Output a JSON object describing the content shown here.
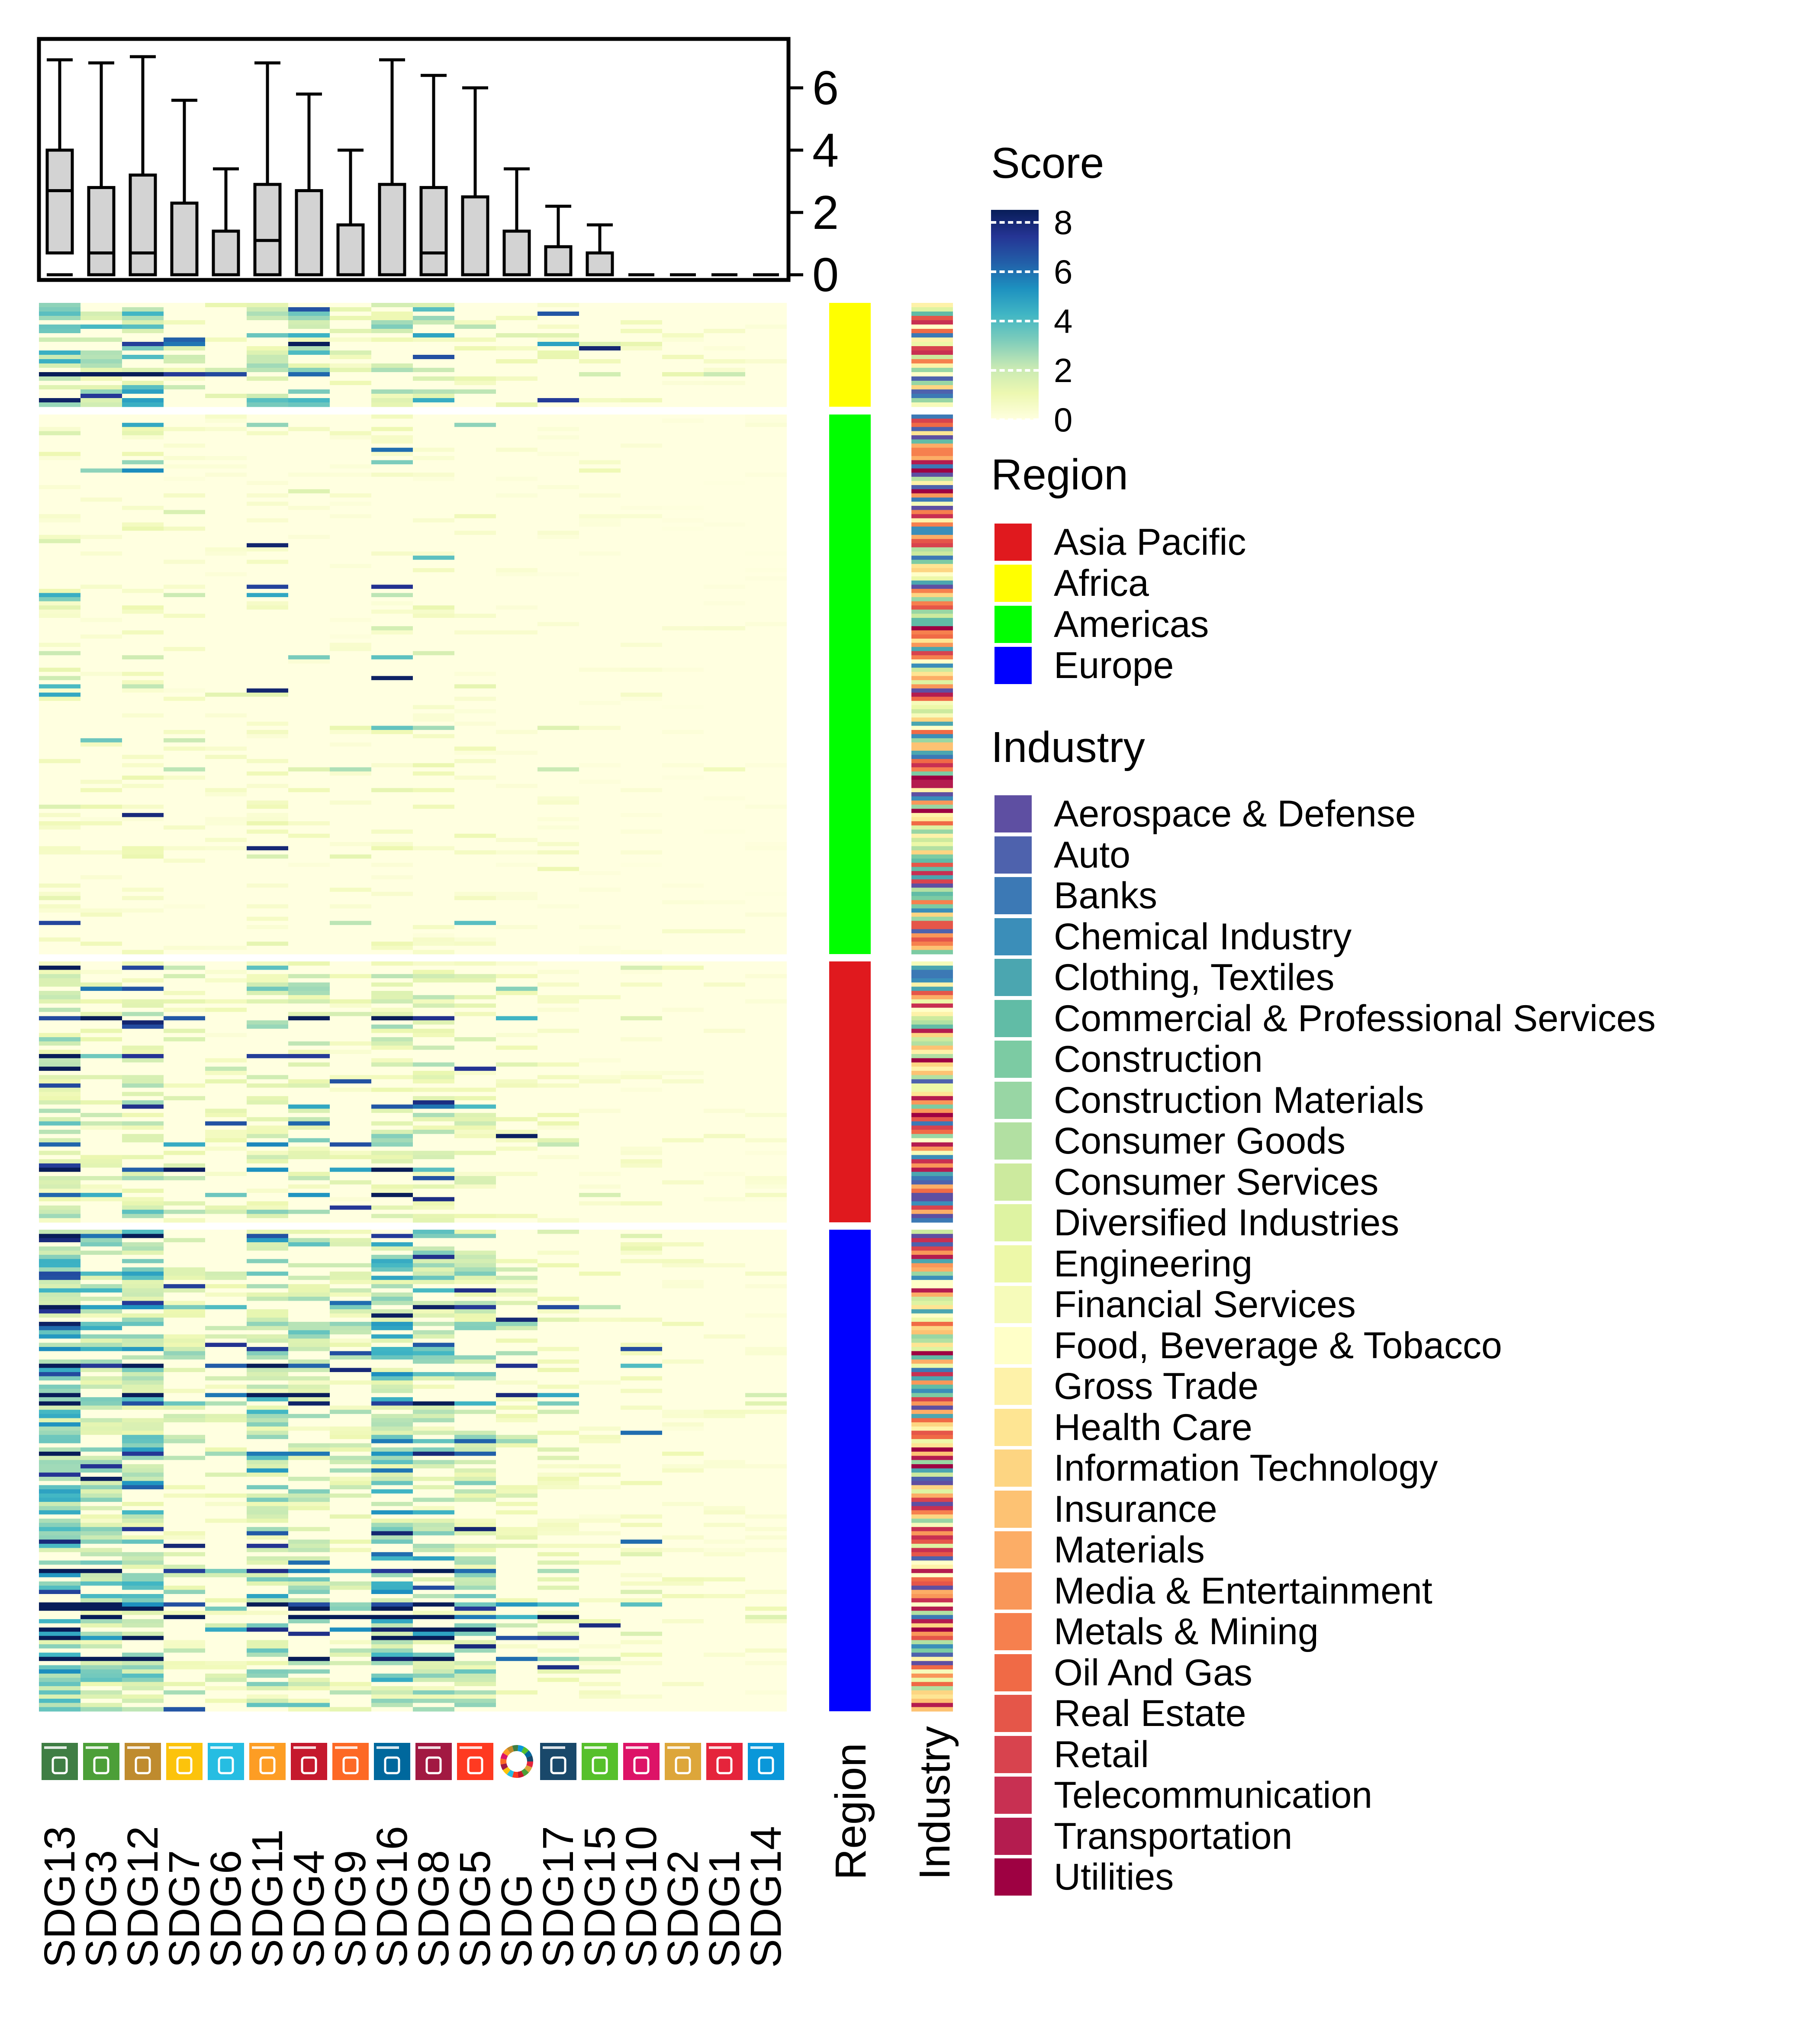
{
  "chart_data": {
    "type": "heatmap",
    "columns": [
      "SDG13",
      "SDG3",
      "SDG12",
      "SDG7",
      "SDG6",
      "SDG11",
      "SDG4",
      "SDG9",
      "SDG16",
      "SDG8",
      "SDG5",
      "SDG",
      "SDG17",
      "SDG15",
      "SDG10",
      "SDG2",
      "SDG1",
      "SDG14"
    ],
    "sdg_icon_colors": [
      "#3F7E44",
      "#4C9F38",
      "#BF8B2E",
      "#FCC30B",
      "#26BDE2",
      "#FD9D24",
      "#C5192D",
      "#FD6925",
      "#00689D",
      "#A21942",
      "#FF3A21",
      "#FFFFFF",
      "#19486A",
      "#56C02B",
      "#DD1367",
      "#DDA63A",
      "#E5243B",
      "#0A97D9"
    ],
    "boxplot": {
      "axis_ticks": [
        "0",
        "2",
        "4",
        "6"
      ],
      "ylim": [
        0,
        7.3
      ],
      "stats": [
        {
          "min": 0,
          "q1": 0.7,
          "median": 2.7,
          "q3": 4.0,
          "max": 6.9
        },
        {
          "min": 0,
          "q1": 0,
          "median": 0.7,
          "q3": 2.8,
          "max": 6.8
        },
        {
          "min": 0,
          "q1": 0,
          "median": 0.7,
          "q3": 3.2,
          "max": 7.0
        },
        {
          "min": 0,
          "q1": 0,
          "median": 0,
          "q3": 2.3,
          "max": 5.6
        },
        {
          "min": 0,
          "q1": 0,
          "median": 0,
          "q3": 1.4,
          "max": 3.4
        },
        {
          "min": 0,
          "q1": 0,
          "median": 1.1,
          "q3": 2.9,
          "max": 6.8
        },
        {
          "min": 0,
          "q1": 0,
          "median": 0,
          "q3": 2.7,
          "max": 5.8
        },
        {
          "min": 0,
          "q1": 0,
          "median": 0,
          "q3": 1.6,
          "max": 4.0
        },
        {
          "min": 0,
          "q1": 0,
          "median": 0,
          "q3": 2.9,
          "max": 6.9
        },
        {
          "min": 0,
          "q1": 0,
          "median": 0.7,
          "q3": 2.8,
          "max": 6.4
        },
        {
          "min": 0,
          "q1": 0,
          "median": 0,
          "q3": 2.5,
          "max": 6.0
        },
        {
          "min": 0,
          "q1": 0,
          "median": 0,
          "q3": 1.4,
          "max": 3.4
        },
        {
          "min": 0,
          "q1": 0,
          "median": 0,
          "q3": 0.9,
          "max": 2.2
        },
        {
          "min": 0,
          "q1": 0,
          "median": 0,
          "q3": 0.7,
          "max": 1.6
        },
        {
          "min": 0,
          "q1": 0,
          "median": 0,
          "q3": 0,
          "max": 0
        },
        {
          "min": 0,
          "q1": 0,
          "median": 0,
          "q3": 0,
          "max": 0
        },
        {
          "min": 0,
          "q1": 0,
          "median": 0,
          "q3": 0,
          "max": 0
        },
        {
          "min": 0,
          "q1": 0,
          "median": 0,
          "q3": 0,
          "max": 0
        }
      ]
    },
    "row_groups": [
      {
        "region": "Africa",
        "rows": 24,
        "column_mean_scores": [
          2.2,
          2.0,
          2.3,
          1.2,
          1.0,
          2.0,
          1.9,
          1.0,
          1.6,
          2.1,
          1.2,
          0.8,
          0.7,
          0.5,
          0.5,
          0.4,
          0.3,
          0.2
        ]
      },
      {
        "region": "Americas",
        "rows": 130,
        "column_mean_scores": [
          0.7,
          0.5,
          0.6,
          0.4,
          0.3,
          0.6,
          0.4,
          0.3,
          0.6,
          0.5,
          0.4,
          0.3,
          0.3,
          0.2,
          0.2,
          0.1,
          0.1,
          0.1
        ]
      },
      {
        "region": "Asia Pacific",
        "rows": 62,
        "column_mean_scores": [
          1.8,
          1.4,
          1.6,
          1.0,
          0.8,
          1.3,
          1.4,
          0.8,
          1.3,
          1.4,
          1.0,
          0.7,
          0.6,
          0.4,
          0.5,
          0.3,
          0.3,
          0.2
        ]
      },
      {
        "region": "Europe",
        "rows": 115,
        "column_mean_scores": [
          3.2,
          2.0,
          2.3,
          1.4,
          1.0,
          2.1,
          1.7,
          1.3,
          2.5,
          2.1,
          1.8,
          1.2,
          0.9,
          0.6,
          0.7,
          0.4,
          0.4,
          0.3
        ]
      }
    ],
    "legends": {
      "score": {
        "title": "Score",
        "ticks": [
          "0",
          "2",
          "4",
          "6",
          "8"
        ],
        "range": [
          0,
          8.5
        ],
        "colors": [
          "#FFFFE0",
          "#EDF8B1",
          "#C7E9B4",
          "#7FCDBB",
          "#41B6C4",
          "#1D91C0",
          "#225EA8",
          "#253494",
          "#081D58"
        ]
      },
      "region": {
        "title": "Region",
        "items": [
          {
            "label": "Asia Pacific",
            "color": "#E0191E"
          },
          {
            "label": "Africa",
            "color": "#FFFF00"
          },
          {
            "label": "Americas",
            "color": "#00FF00"
          },
          {
            "label": "Europe",
            "color": "#0000FF"
          }
        ]
      },
      "industry": {
        "title": "Industry",
        "items": [
          {
            "label": "Aerospace & Defense",
            "color": "#5E4FA2"
          },
          {
            "label": "Auto",
            "color": "#4E62AD"
          },
          {
            "label": "Banks",
            "color": "#3C79B5"
          },
          {
            "label": "Chemical Industry",
            "color": "#3B8EB9"
          },
          {
            "label": "Clothing, Textiles",
            "color": "#4BA6B0"
          },
          {
            "label": "Commercial & Professional Services",
            "color": "#61BCA6"
          },
          {
            "label": "Construction",
            "color": "#7CCBA3"
          },
          {
            "label": "Construction Materials",
            "color": "#98D6A4"
          },
          {
            "label": "Consumer Goods",
            "color": "#B2E0A2"
          },
          {
            "label": "Consumer Services",
            "color": "#CCEA9E"
          },
          {
            "label": "Diversified Industries",
            "color": "#DEF3A2"
          },
          {
            "label": "Engineering",
            "color": "#EDF8A8"
          },
          {
            "label": "Financial Services",
            "color": "#F6FBBA"
          },
          {
            "label": "Food, Beverage & Tobacco",
            "color": "#FFFFC8"
          },
          {
            "label": "Gross Trade",
            "color": "#FEF2A9"
          },
          {
            "label": "Health Care",
            "color": "#FEE593"
          },
          {
            "label": "Information Technology",
            "color": "#FDD582"
          },
          {
            "label": "Insurance",
            "color": "#FDC273"
          },
          {
            "label": "Materials",
            "color": "#FCAD66"
          },
          {
            "label": "Media & Entertainment",
            "color": "#F99759"
          },
          {
            "label": "Metals & Mining",
            "color": "#F6804E"
          },
          {
            "label": "Oil And Gas",
            "color": "#F06A46"
          },
          {
            "label": "Real Estate",
            "color": "#E55649"
          },
          {
            "label": "Retail",
            "color": "#D8434E"
          },
          {
            "label": "Telecommunication",
            "color": "#C83052"
          },
          {
            "label": "Transportation",
            "color": "#B41C4F"
          },
          {
            "label": "Utilities",
            "color": "#9E0142"
          }
        ]
      }
    },
    "annotation_labels": [
      "Region",
      "Industry"
    ]
  }
}
